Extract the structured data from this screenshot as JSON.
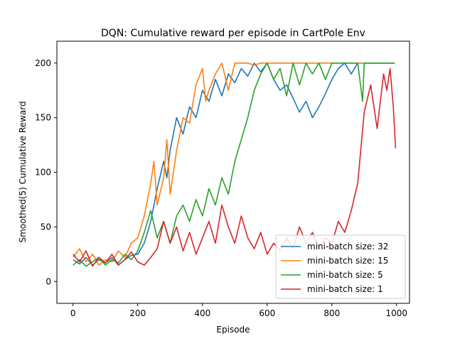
{
  "chart_data": {
    "type": "line",
    "title": "DQN: Cumulative reward per episode in CartPole Env",
    "xlabel": "Episode",
    "ylabel": "Smoothed(5) Cumulative Reward",
    "xlim": [
      -50,
      1040
    ],
    "ylim": [
      -20,
      220
    ],
    "xticks": [
      0,
      200,
      400,
      600,
      800,
      1000
    ],
    "yticks": [
      0,
      50,
      100,
      150,
      200
    ],
    "grid": false,
    "legend_position": "bottom-right",
    "series": [
      {
        "name": "mini-batch size: 32",
        "color": "#1f77b4",
        "points": [
          [
            0,
            20
          ],
          [
            20,
            16
          ],
          [
            40,
            22
          ],
          [
            60,
            15
          ],
          [
            80,
            20
          ],
          [
            100,
            17
          ],
          [
            120,
            22
          ],
          [
            140,
            15
          ],
          [
            160,
            20
          ],
          [
            180,
            24
          ],
          [
            200,
            25
          ],
          [
            220,
            35
          ],
          [
            240,
            55
          ],
          [
            260,
            85
          ],
          [
            280,
            110
          ],
          [
            290,
            95
          ],
          [
            300,
            120
          ],
          [
            320,
            150
          ],
          [
            340,
            135
          ],
          [
            360,
            160
          ],
          [
            380,
            150
          ],
          [
            400,
            175
          ],
          [
            420,
            165
          ],
          [
            440,
            185
          ],
          [
            460,
            170
          ],
          [
            480,
            190
          ],
          [
            500,
            182
          ],
          [
            520,
            195
          ],
          [
            540,
            188
          ],
          [
            560,
            200
          ],
          [
            580,
            192
          ],
          [
            600,
            200
          ],
          [
            620,
            185
          ],
          [
            640,
            175
          ],
          [
            660,
            180
          ],
          [
            680,
            168
          ],
          [
            700,
            155
          ],
          [
            720,
            165
          ],
          [
            740,
            150
          ],
          [
            760,
            160
          ],
          [
            780,
            172
          ],
          [
            800,
            185
          ],
          [
            820,
            195
          ],
          [
            840,
            200
          ],
          [
            860,
            190
          ],
          [
            880,
            200
          ],
          [
            900,
            200
          ],
          [
            920,
            200
          ],
          [
            940,
            200
          ],
          [
            960,
            200
          ],
          [
            980,
            200
          ],
          [
            995,
            200
          ]
        ]
      },
      {
        "name": "mini-batch size: 15",
        "color": "#ff7f0e",
        "points": [
          [
            0,
            22
          ],
          [
            20,
            30
          ],
          [
            40,
            18
          ],
          [
            60,
            25
          ],
          [
            80,
            15
          ],
          [
            100,
            20
          ],
          [
            120,
            18
          ],
          [
            140,
            28
          ],
          [
            160,
            22
          ],
          [
            180,
            35
          ],
          [
            200,
            40
          ],
          [
            220,
            60
          ],
          [
            240,
            90
          ],
          [
            250,
            110
          ],
          [
            260,
            70
          ],
          [
            280,
            95
          ],
          [
            290,
            130
          ],
          [
            300,
            80
          ],
          [
            320,
            120
          ],
          [
            340,
            150
          ],
          [
            360,
            145
          ],
          [
            380,
            180
          ],
          [
            400,
            195
          ],
          [
            410,
            165
          ],
          [
            420,
            175
          ],
          [
            440,
            190
          ],
          [
            460,
            200
          ],
          [
            480,
            175
          ],
          [
            500,
            200
          ],
          [
            520,
            200
          ],
          [
            540,
            200
          ],
          [
            560,
            198
          ],
          [
            580,
            200
          ],
          [
            600,
            200
          ],
          [
            620,
            200
          ],
          [
            640,
            200
          ],
          [
            660,
            200
          ],
          [
            680,
            200
          ],
          [
            700,
            200
          ],
          [
            720,
            200
          ],
          [
            740,
            200
          ],
          [
            760,
            200
          ],
          [
            780,
            200
          ],
          [
            800,
            200
          ],
          [
            820,
            200
          ],
          [
            840,
            200
          ],
          [
            860,
            200
          ],
          [
            880,
            200
          ],
          [
            900,
            200
          ],
          [
            920,
            200
          ],
          [
            940,
            200
          ],
          [
            960,
            200
          ],
          [
            980,
            200
          ],
          [
            990,
            200
          ]
        ]
      },
      {
        "name": "mini-batch size: 5",
        "color": "#2ca02c",
        "points": [
          [
            0,
            15
          ],
          [
            20,
            20
          ],
          [
            40,
            14
          ],
          [
            60,
            18
          ],
          [
            80,
            22
          ],
          [
            100,
            15
          ],
          [
            120,
            20
          ],
          [
            140,
            17
          ],
          [
            160,
            25
          ],
          [
            180,
            20
          ],
          [
            200,
            28
          ],
          [
            220,
            45
          ],
          [
            240,
            65
          ],
          [
            260,
            40
          ],
          [
            280,
            55
          ],
          [
            300,
            35
          ],
          [
            320,
            60
          ],
          [
            340,
            70
          ],
          [
            360,
            55
          ],
          [
            380,
            75
          ],
          [
            400,
            60
          ],
          [
            420,
            85
          ],
          [
            440,
            70
          ],
          [
            460,
            95
          ],
          [
            480,
            80
          ],
          [
            500,
            110
          ],
          [
            520,
            130
          ],
          [
            540,
            150
          ],
          [
            560,
            175
          ],
          [
            580,
            190
          ],
          [
            600,
            200
          ],
          [
            620,
            185
          ],
          [
            640,
            195
          ],
          [
            660,
            170
          ],
          [
            680,
            200
          ],
          [
            700,
            180
          ],
          [
            720,
            200
          ],
          [
            740,
            190
          ],
          [
            760,
            200
          ],
          [
            780,
            185
          ],
          [
            800,
            200
          ],
          [
            820,
            200
          ],
          [
            840,
            200
          ],
          [
            860,
            200
          ],
          [
            880,
            200
          ],
          [
            895,
            165
          ],
          [
            900,
            200
          ],
          [
            920,
            200
          ],
          [
            940,
            200
          ],
          [
            960,
            200
          ],
          [
            980,
            200
          ],
          [
            995,
            200
          ]
        ]
      },
      {
        "name": "mini-batch size: 1",
        "color": "#d62728",
        "points": [
          [
            0,
            25
          ],
          [
            20,
            18
          ],
          [
            40,
            28
          ],
          [
            60,
            14
          ],
          [
            80,
            22
          ],
          [
            100,
            17
          ],
          [
            120,
            25
          ],
          [
            140,
            15
          ],
          [
            160,
            20
          ],
          [
            180,
            27
          ],
          [
            200,
            18
          ],
          [
            220,
            15
          ],
          [
            240,
            22
          ],
          [
            260,
            30
          ],
          [
            280,
            55
          ],
          [
            300,
            35
          ],
          [
            320,
            50
          ],
          [
            340,
            28
          ],
          [
            360,
            45
          ],
          [
            380,
            25
          ],
          [
            400,
            40
          ],
          [
            420,
            55
          ],
          [
            440,
            35
          ],
          [
            460,
            70
          ],
          [
            480,
            50
          ],
          [
            500,
            35
          ],
          [
            520,
            60
          ],
          [
            540,
            40
          ],
          [
            560,
            30
          ],
          [
            580,
            45
          ],
          [
            600,
            25
          ],
          [
            620,
            35
          ],
          [
            640,
            28
          ],
          [
            660,
            40
          ],
          [
            680,
            30
          ],
          [
            700,
            50
          ],
          [
            720,
            35
          ],
          [
            740,
            45
          ],
          [
            760,
            30
          ],
          [
            780,
            40
          ],
          [
            800,
            35
          ],
          [
            820,
            55
          ],
          [
            840,
            45
          ],
          [
            860,
            65
          ],
          [
            880,
            90
          ],
          [
            900,
            155
          ],
          [
            920,
            180
          ],
          [
            940,
            140
          ],
          [
            960,
            190
          ],
          [
            970,
            175
          ],
          [
            980,
            195
          ],
          [
            990,
            160
          ],
          [
            997,
            122
          ]
        ]
      }
    ]
  }
}
